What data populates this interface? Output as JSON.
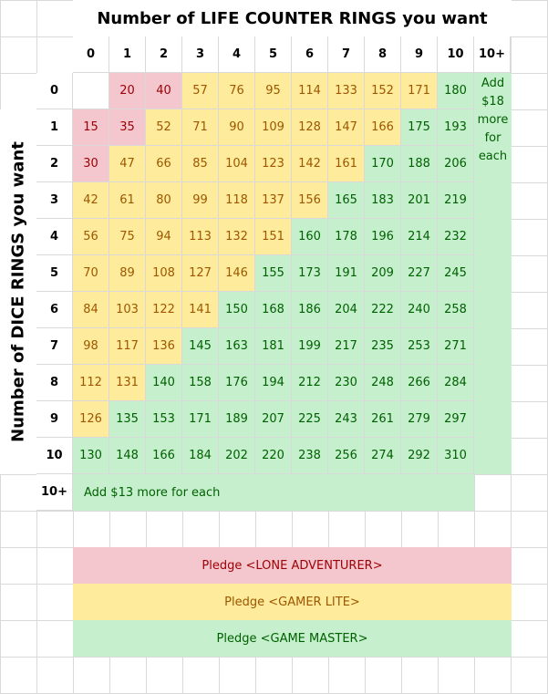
{
  "title": "Number of LIFE COUNTER RINGS you want",
  "y_axis_label": "Number of DICE RINGS you want",
  "column_headers": [
    "0",
    "1",
    "2",
    "3",
    "4",
    "5",
    "6",
    "7",
    "8",
    "9",
    "10",
    "10+"
  ],
  "row_headers": [
    "0",
    "1",
    "2",
    "3",
    "4",
    "5",
    "6",
    "7",
    "8",
    "9",
    "10",
    "10+"
  ],
  "rows": [
    [
      "",
      "20",
      "40",
      "57",
      "76",
      "95",
      "114",
      "133",
      "152",
      "171",
      "180"
    ],
    [
      "15",
      "35",
      "52",
      "71",
      "90",
      "109",
      "128",
      "147",
      "166",
      "175",
      "193"
    ],
    [
      "30",
      "47",
      "66",
      "85",
      "104",
      "123",
      "142",
      "161",
      "170",
      "188",
      "206"
    ],
    [
      "42",
      "61",
      "80",
      "99",
      "118",
      "137",
      "156",
      "165",
      "183",
      "201",
      "219"
    ],
    [
      "56",
      "75",
      "94",
      "113",
      "132",
      "151",
      "160",
      "178",
      "196",
      "214",
      "232"
    ],
    [
      "70",
      "89",
      "108",
      "127",
      "146",
      "155",
      "173",
      "191",
      "209",
      "227",
      "245"
    ],
    [
      "84",
      "103",
      "122",
      "141",
      "150",
      "168",
      "186",
      "204",
      "222",
      "240",
      "258"
    ],
    [
      "98",
      "117",
      "136",
      "145",
      "163",
      "181",
      "199",
      "217",
      "235",
      "253",
      "271"
    ],
    [
      "112",
      "131",
      "140",
      "158",
      "176",
      "194",
      "212",
      "230",
      "248",
      "266",
      "284"
    ],
    [
      "126",
      "135",
      "153",
      "171",
      "189",
      "207",
      "225",
      "243",
      "261",
      "279",
      "297"
    ],
    [
      "130",
      "148",
      "166",
      "184",
      "202",
      "220",
      "238",
      "256",
      "274",
      "292",
      "310"
    ]
  ],
  "tiers": [
    [
      "none",
      "pink",
      "pink",
      "yellow",
      "yellow",
      "yellow",
      "yellow",
      "yellow",
      "yellow",
      "yellow",
      "green"
    ],
    [
      "pink",
      "pink",
      "yellow",
      "yellow",
      "yellow",
      "yellow",
      "yellow",
      "yellow",
      "yellow",
      "green",
      "green"
    ],
    [
      "pink",
      "yellow",
      "yellow",
      "yellow",
      "yellow",
      "yellow",
      "yellow",
      "yellow",
      "green",
      "green",
      "green"
    ],
    [
      "yellow",
      "yellow",
      "yellow",
      "yellow",
      "yellow",
      "yellow",
      "yellow",
      "green",
      "green",
      "green",
      "green"
    ],
    [
      "yellow",
      "yellow",
      "yellow",
      "yellow",
      "yellow",
      "yellow",
      "green",
      "green",
      "green",
      "green",
      "green"
    ],
    [
      "yellow",
      "yellow",
      "yellow",
      "yellow",
      "yellow",
      "green",
      "green",
      "green",
      "green",
      "green",
      "green"
    ],
    [
      "yellow",
      "yellow",
      "yellow",
      "yellow",
      "green",
      "green",
      "green",
      "green",
      "green",
      "green",
      "green"
    ],
    [
      "yellow",
      "yellow",
      "yellow",
      "green",
      "green",
      "green",
      "green",
      "green",
      "green",
      "green",
      "green"
    ],
    [
      "yellow",
      "yellow",
      "green",
      "green",
      "green",
      "green",
      "green",
      "green",
      "green",
      "green",
      "green"
    ],
    [
      "yellow",
      "green",
      "green",
      "green",
      "green",
      "green",
      "green",
      "green",
      "green",
      "green",
      "green"
    ],
    [
      "green",
      "green",
      "green",
      "green",
      "green",
      "green",
      "green",
      "green",
      "green",
      "green",
      "green"
    ]
  ],
  "extra_column_lines": [
    "Add",
    "$18",
    "more",
    "for",
    "each"
  ],
  "extra_row_text": "Add $13 more for each",
  "legend": [
    {
      "label": "Pledge <LONE ADVENTURER>",
      "color": "#f4c7ce",
      "text_color": "#9c0006"
    },
    {
      "label": "Pledge <GAMER LITE>",
      "color": "#ffeb9c",
      "text_color": "#9c5700"
    },
    {
      "label": "Pledge <GAME MASTER>",
      "color": "#c6efce",
      "text_color": "#006100"
    }
  ]
}
